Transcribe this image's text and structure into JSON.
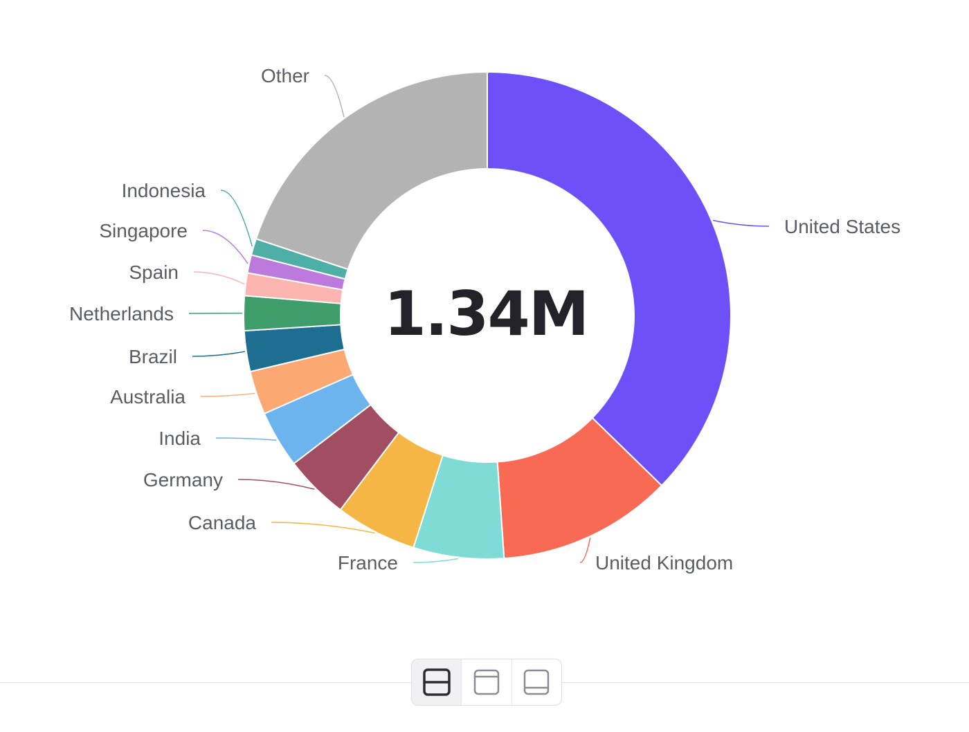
{
  "chart_data": {
    "type": "pie",
    "variant": "donut",
    "center_label": "1.34M",
    "slices": [
      {
        "label": "United States",
        "value": 37.3,
        "color": "#6E50F8"
      },
      {
        "label": "United Kingdom",
        "value": 11.6,
        "color": "#F96A55"
      },
      {
        "label": "France",
        "value": 6.0,
        "color": "#7EDBD5"
      },
      {
        "label": "Canada",
        "value": 5.4,
        "color": "#F5B645"
      },
      {
        "label": "Germany",
        "value": 4.3,
        "color": "#A24E62"
      },
      {
        "label": "India",
        "value": 3.8,
        "color": "#6DB4EE"
      },
      {
        "label": "Australia",
        "value": 2.9,
        "color": "#FCA872"
      },
      {
        "label": "Brazil",
        "value": 2.7,
        "color": "#1E6E92"
      },
      {
        "label": "Netherlands",
        "value": 2.3,
        "color": "#3E9D6A"
      },
      {
        "label": "Spain",
        "value": 1.5,
        "color": "#FBB4AF"
      },
      {
        "label": "Singapore",
        "value": 1.2,
        "color": "#BB7ADC"
      },
      {
        "label": "Indonesia",
        "value": 1.1,
        "color": "#4EAFA6"
      },
      {
        "label": "Other",
        "value": 19.9,
        "color": "#B3B3B3"
      }
    ]
  },
  "view_toggle": {
    "options": [
      {
        "name": "split-view-icon",
        "active": true
      },
      {
        "name": "top-panel-view-icon",
        "active": false
      },
      {
        "name": "bottom-panel-view-icon",
        "active": false
      }
    ]
  }
}
